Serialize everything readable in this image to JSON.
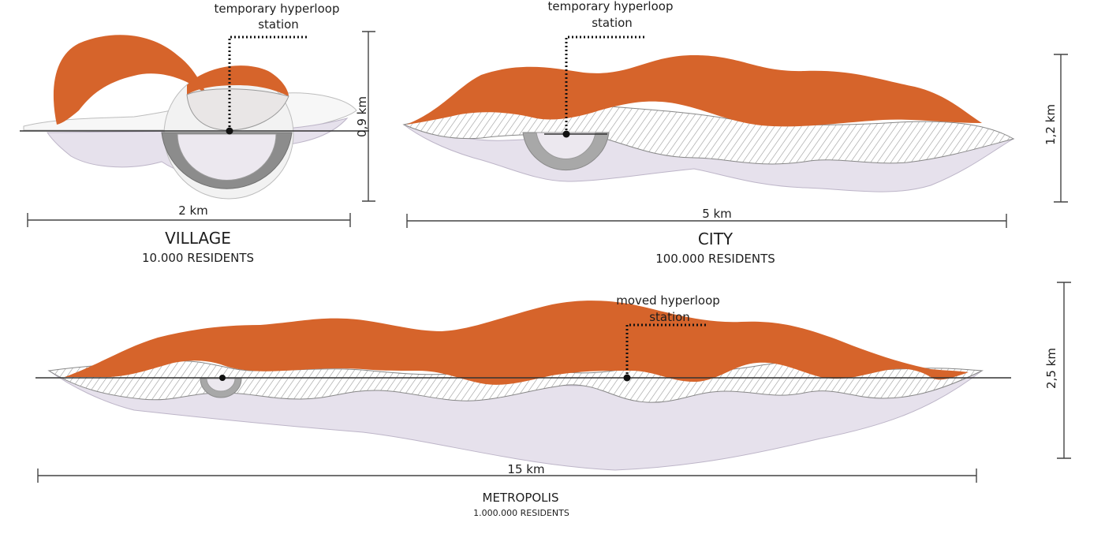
{
  "village": {
    "station_label_line1": "temporary hyperloop",
    "station_label_line2": "station",
    "width_label": "2 km",
    "height_label": "0,9 km",
    "title": "VILLAGE",
    "residents": "10.000 RESIDENTS"
  },
  "city": {
    "station_label_line1": "temporary hyperloop",
    "station_label_line2": "station",
    "width_label": "5 km",
    "height_label": "1,2 km",
    "title": "CITY",
    "residents": "100.000 RESIDENTS"
  },
  "metropolis": {
    "station_label_line1": "moved hyperloop",
    "station_label_line2": "station",
    "width_label": "15 km",
    "height_label": "2,5 km",
    "title": "METROPOLIS",
    "residents": "1.000.000 RESIDENTS"
  },
  "colors": {
    "orange": "#d6642b",
    "lavender": "#e6e1ec",
    "hatch": "#9a9a9a",
    "station_gray": "#8c8c8c",
    "line": "#333333"
  }
}
